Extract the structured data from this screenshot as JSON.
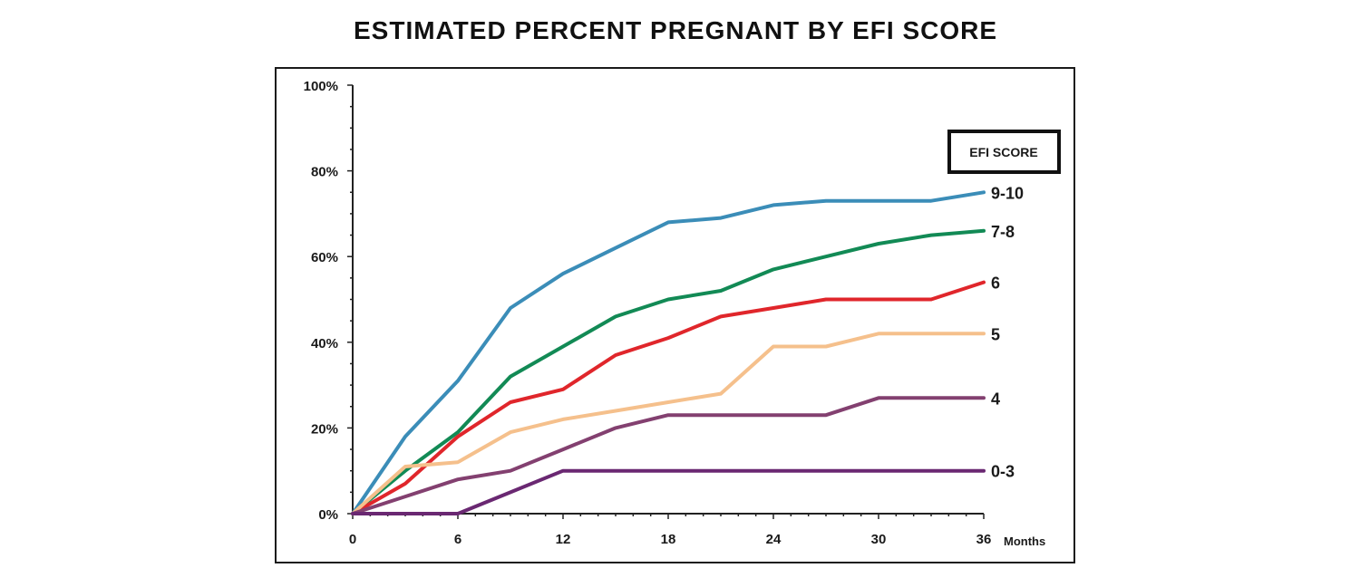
{
  "chart_data": {
    "type": "line",
    "title": "ESTIMATED PERCENT PREGNANT BY EFI SCORE",
    "xlabel": "Months",
    "ylabel": "",
    "x_ticks": [
      "0",
      "6",
      "12",
      "18",
      "24",
      "30",
      "36"
    ],
    "y_ticks": [
      "0%",
      "20%",
      "40%",
      "60%",
      "80%",
      "100%"
    ],
    "xlim": [
      0,
      36
    ],
    "ylim": [
      0,
      100
    ],
    "grid": false,
    "legend_title": "EFI SCORE",
    "x": [
      0,
      3,
      6,
      9,
      12,
      15,
      18,
      21,
      24,
      27,
      30,
      33,
      36
    ],
    "series": [
      {
        "name": "9-10",
        "color": "#3b8db8",
        "values": [
          0,
          18,
          31,
          48,
          56,
          62,
          68,
          69,
          72,
          73,
          73,
          73,
          75
        ]
      },
      {
        "name": "7-8",
        "color": "#128a55",
        "values": [
          0,
          10,
          19,
          32,
          39,
          46,
          50,
          52,
          57,
          60,
          63,
          65,
          66
        ]
      },
      {
        "name": "6",
        "color": "#e0262b",
        "values": [
          0,
          7,
          18,
          26,
          29,
          37,
          41,
          46,
          48,
          50,
          50,
          50,
          54
        ]
      },
      {
        "name": "5",
        "color": "#f5c08c",
        "values": [
          0,
          11,
          12,
          19,
          22,
          24,
          26,
          28,
          39,
          39,
          42,
          42,
          42
        ]
      },
      {
        "name": "4",
        "color": "#834070",
        "values": [
          0,
          4,
          8,
          10,
          15,
          20,
          23,
          23,
          23,
          23,
          27,
          27,
          27
        ]
      },
      {
        "name": "0-3",
        "color": "#6a2872",
        "values": [
          0,
          0,
          0,
          5,
          10,
          10,
          10,
          10,
          10,
          10,
          10,
          10,
          10
        ]
      }
    ]
  }
}
